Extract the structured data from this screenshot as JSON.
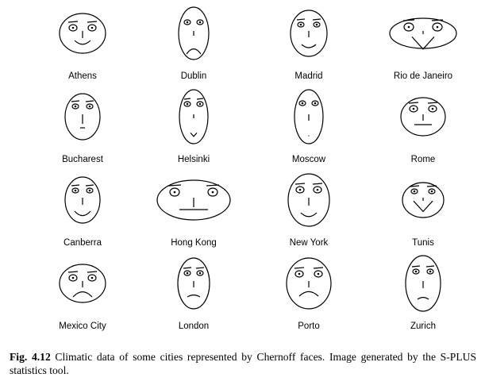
{
  "faces": [
    {
      "city": "Athens"
    },
    {
      "city": "Dublin"
    },
    {
      "city": "Madrid"
    },
    {
      "city": "Rio de Janeiro"
    },
    {
      "city": "Bucharest"
    },
    {
      "city": "Helsinki"
    },
    {
      "city": "Moscow"
    },
    {
      "city": "Rome"
    },
    {
      "city": "Canberra"
    },
    {
      "city": "Hong Kong"
    },
    {
      "city": "New York"
    },
    {
      "city": "Tunis"
    },
    {
      "city": "Mexico City"
    },
    {
      "city": "London"
    },
    {
      "city": "Porto"
    },
    {
      "city": "Zurich"
    }
  ],
  "caption": {
    "label": "Fig. 4.12",
    "text": "Climatic data of some cities represented by Chernoff faces. Image generated by the S-PLUS statistics tool."
  }
}
